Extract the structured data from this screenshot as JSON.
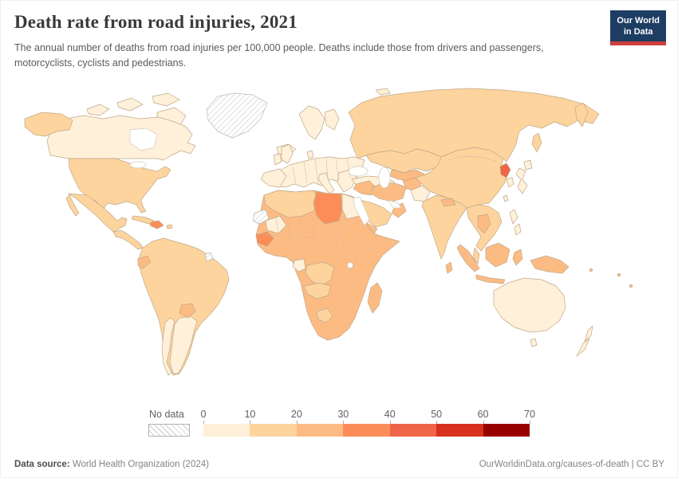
{
  "header": {
    "title": "Death rate from road injuries, 2021",
    "subtitle": "The annual number of deaths from road injuries per 100,000 people. Deaths include those from drivers and passengers, motorcyclists, cyclists and pedestrians.",
    "logo_line1": "Our World",
    "logo_line2": "in Data"
  },
  "footer": {
    "source_label": "Data source:",
    "source_value": " World Health Organization (2024)",
    "link": "OurWorldinData.org/causes-of-death",
    "separator": " | ",
    "license": "CC BY"
  },
  "chart_data": {
    "type": "choropleth-world-map",
    "title": "Death rate from road injuries, 2021",
    "unit": "deaths per 100,000 people",
    "year": 2021,
    "projection": "world",
    "legend": {
      "no_data_label": "No data",
      "ticks": [
        0,
        10,
        20,
        30,
        40,
        50,
        60,
        70
      ],
      "bin_colors": [
        "#fef0d9",
        "#fdd49e",
        "#fdbb84",
        "#fc8d59",
        "#ef6548",
        "#d7301f",
        "#990000"
      ],
      "bin_ranges": [
        "0-10",
        "10-20",
        "20-30",
        "30-40",
        "40-50",
        "50-60",
        "60-70"
      ]
    },
    "no_data_pattern": "diagonal-hatch",
    "regions": {
      "canada": {
        "label": "Canada",
        "value": "0-10",
        "color": "#fef0d9"
      },
      "united_states": {
        "label": "United States",
        "value": "10-20",
        "color": "#fdd49e"
      },
      "greenland": {
        "label": "Greenland",
        "value": "No data",
        "color": "hatched"
      },
      "mexico": {
        "label": "Mexico",
        "value": "10-20",
        "color": "#fdd49e"
      },
      "central_america": {
        "label": "Central America",
        "value": "10-20",
        "color": "#fdd49e"
      },
      "cuba": {
        "label": "Cuba",
        "value": "10-20",
        "color": "#fdd49e"
      },
      "hispaniola": {
        "label": "Haiti & Dominican Republic",
        "value": "30-40",
        "color": "#fc8d59"
      },
      "puerto_rico": {
        "label": "Puerto Rico",
        "value": "10-20",
        "color": "#fdd49e"
      },
      "south_america": {
        "label": "Brazil & Andean states",
        "value": "10-20",
        "color": "#fdd49e"
      },
      "argentina": {
        "label": "Argentina",
        "value": "0-10",
        "color": "#fef0d9"
      },
      "chile": {
        "label": "Chile",
        "value": "0-10",
        "color": "#fef0d9"
      },
      "ecuador": {
        "label": "Ecuador",
        "value": "20-30",
        "color": "#fdbb84"
      },
      "paraguay": {
        "label": "Paraguay",
        "value": "20-30",
        "color": "#fdbb84"
      },
      "french_guiana": {
        "label": "French Guiana",
        "value": "No data",
        "color": "hatched"
      },
      "europe": {
        "label": "Europe",
        "value": "0-10",
        "color": "#fef0d9"
      },
      "russia": {
        "label": "Russia",
        "value": "10-20",
        "color": "#fdd49e"
      },
      "kazakhstan": {
        "label": "Kazakhstan",
        "value": "10-20",
        "color": "#fdd49e"
      },
      "central_asia": {
        "label": "Uzbekistan & Turkmenistan",
        "value": "20-30",
        "color": "#fdbb84"
      },
      "turkey": {
        "label": "Turkey",
        "value": "0-10",
        "color": "#fef0d9"
      },
      "iran": {
        "label": "Iran",
        "value": "20-30",
        "color": "#fdbb84"
      },
      "iraq_syria": {
        "label": "Iraq & Syria",
        "value": "20-30",
        "color": "#fdbb84"
      },
      "afghanistan": {
        "label": "Afghanistan",
        "value": "20-30",
        "color": "#fdbb84"
      },
      "pakistan": {
        "label": "Pakistan",
        "value": "0-10",
        "color": "#fef0d9"
      },
      "saudi_arabia": {
        "label": "Saudi Arabia",
        "value": "10-20",
        "color": "#fdd49e"
      },
      "oman": {
        "label": "Oman",
        "value": "20-30",
        "color": "#fdbb84"
      },
      "yemen": {
        "label": "Yemen",
        "value": "20-30",
        "color": "#fdbb84"
      },
      "china": {
        "label": "China",
        "value": "10-20",
        "color": "#fdd49e"
      },
      "north_korea": {
        "label": "North Korea",
        "value": "40-50",
        "color": "#ef6548"
      },
      "south_korea": {
        "label": "South Korea",
        "value": "0-10",
        "color": "#fef0d9"
      },
      "japan": {
        "label": "Japan",
        "value": "0-10",
        "color": "#fef0d9"
      },
      "taiwan": {
        "label": "Taiwan",
        "value": "0-10",
        "color": "#fef0d9"
      },
      "india": {
        "label": "India",
        "value": "10-20",
        "color": "#fdd49e"
      },
      "nepal": {
        "label": "Nepal",
        "value": "20-30",
        "color": "#fdbb84"
      },
      "sri_lanka": {
        "label": "Sri Lanka",
        "value": "20-30",
        "color": "#fdbb84"
      },
      "indochina": {
        "label": "Myanmar, Vietnam & Cambodia",
        "value": "10-20",
        "color": "#fdd49e"
      },
      "thailand": {
        "label": "Thailand",
        "value": "20-30",
        "color": "#fdbb84"
      },
      "malaysia": {
        "label": "Malaysia",
        "value": "10-20",
        "color": "#fdd49e"
      },
      "indonesia": {
        "label": "Indonesia",
        "value": "20-30",
        "color": "#fdbb84"
      },
      "new_guinea": {
        "label": "Papua New Guinea",
        "value": "20-30",
        "color": "#fdbb84"
      },
      "philippines": {
        "label": "Philippines",
        "value": "0-10",
        "color": "#fef0d9"
      },
      "north_africa": {
        "label": "Morocco, Algeria & Tunisia",
        "value": "10-20",
        "color": "#fdd49e"
      },
      "western_sahara": {
        "label": "Western Sahara",
        "value": "No data",
        "color": "hatched"
      },
      "mauritania": {
        "label": "Mauritania",
        "value": "0-10",
        "color": "#fef0d9"
      },
      "libya": {
        "label": "Libya",
        "value": "30-40",
        "color": "#fc8d59"
      },
      "egypt": {
        "label": "Egypt",
        "value": "0-10",
        "color": "#fef0d9"
      },
      "sub_saharan_africa": {
        "label": "Sub-Saharan Africa (most countries)",
        "value": "20-30",
        "color": "#fdbb84"
      },
      "guinea": {
        "label": "Guinea",
        "value": "30-40",
        "color": "#fc8d59"
      },
      "dr_congo": {
        "label": "Democratic Republic of Congo",
        "value": "10-20",
        "color": "#fdd49e"
      },
      "gabon": {
        "label": "Gabon",
        "value": "0-10",
        "color": "#fef0d9"
      },
      "angola_zambia": {
        "label": "Angola & Zambia",
        "value": "10-20",
        "color": "#fdd49e"
      },
      "botswana": {
        "label": "Botswana",
        "value": "10-20",
        "color": "#fdd49e"
      },
      "madagascar": {
        "label": "Madagascar",
        "value": "20-30",
        "color": "#fdbb84"
      },
      "australia": {
        "label": "Australia",
        "value": "0-10",
        "color": "#fef0d9"
      },
      "new_zealand": {
        "label": "New Zealand",
        "value": "0-10",
        "color": "#fef0d9"
      },
      "pacific_islands": {
        "label": "Pacific islands",
        "value": "20-30",
        "color": "#fdbb84"
      }
    }
  }
}
